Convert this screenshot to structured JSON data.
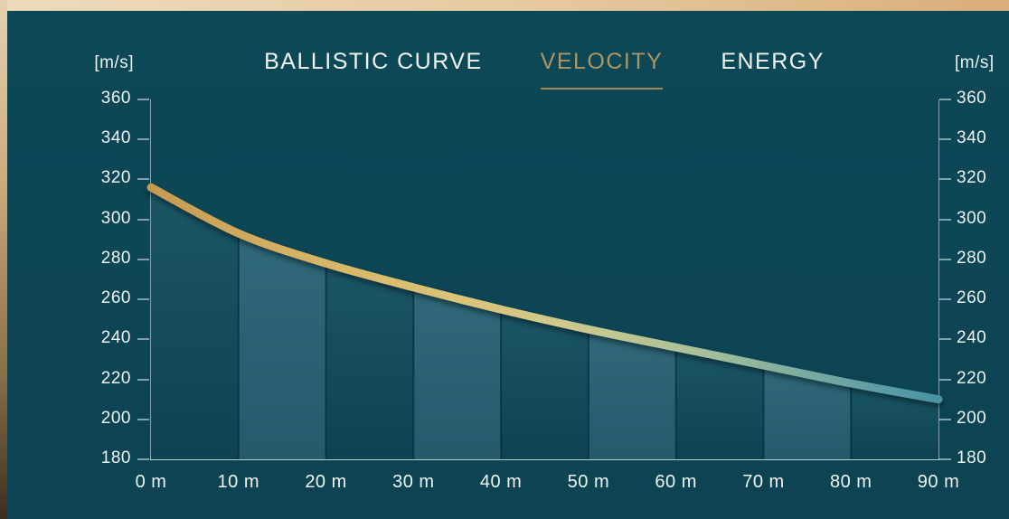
{
  "tabs": {
    "items": [
      {
        "label": "BALLISTIC CURVE",
        "active": false
      },
      {
        "label": "VELOCITY",
        "active": true
      },
      {
        "label": "ENERGY",
        "active": false
      }
    ]
  },
  "axis": {
    "left_unit": "[m/s]",
    "right_unit": "[m/s]"
  },
  "colors": {
    "gold_accent": "#ab9765",
    "tab_underline": "#9c8b5e",
    "panel_background": "#0d4655",
    "frame_gold_light": "#eedbbc",
    "frame_gold_dark": "#d9ae7b",
    "axis_line": "#96b4be",
    "tick_text": "#eef4f5",
    "curve_gradient_stops": [
      {
        "offset": 0.0,
        "color": "#c69a52"
      },
      {
        "offset": 0.18,
        "color": "#d5b264"
      },
      {
        "offset": 0.38,
        "color": "#dcc377"
      },
      {
        "offset": 0.52,
        "color": "#cfc98c"
      },
      {
        "offset": 0.68,
        "color": "#adc298"
      },
      {
        "offset": 0.84,
        "color": "#78aaa2"
      },
      {
        "offset": 1.0,
        "color": "#4992a4"
      }
    ],
    "column_dark_top": "#1c5665",
    "column_dark_bottom": "#0d4251",
    "column_light_top": "#30697a",
    "column_light_bottom": "#255a6b",
    "column_divider": "rgba(7,47,59,0.75)"
  },
  "chart_data": {
    "type": "area",
    "title": "VELOCITY",
    "x_m": [
      0,
      10,
      20,
      30,
      40,
      50,
      60,
      70,
      80,
      90
    ],
    "categories": [
      "0 m",
      "10 m",
      "20 m",
      "30 m",
      "40 m",
      "50 m",
      "60 m",
      "70 m",
      "80 m",
      "90 m"
    ],
    "series": [
      {
        "name": "VELOCITY",
        "unit": "m/s",
        "values": [
          316,
          293,
          278,
          266,
          255,
          245,
          236,
          227,
          218,
          210
        ]
      }
    ],
    "xlabel": "",
    "ylabel": "[m/s]",
    "ylim": [
      180,
      360
    ],
    "yticks": [
      360,
      340,
      320,
      300,
      280,
      260,
      240,
      220,
      200,
      180
    ],
    "grid": false,
    "legend": "none",
    "style_notes": "gold-to-teal gradient curve over alternating dark/light teal 10 m columns"
  }
}
